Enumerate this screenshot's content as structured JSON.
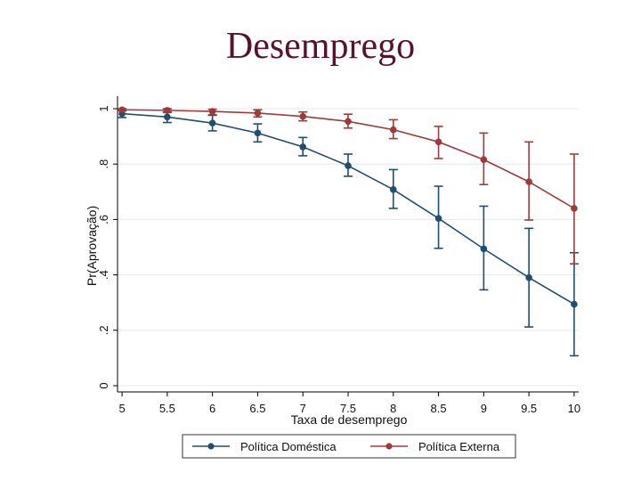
{
  "slide": {
    "title": "Desemprego"
  },
  "chart_data": {
    "type": "line",
    "title": "Desemprego",
    "xlabel": "Taxa de desemprego",
    "ylabel": "Pr(Aprovação)",
    "x": [
      5,
      5.5,
      6,
      6.5,
      7,
      7.5,
      8,
      8.5,
      9,
      9.5,
      10
    ],
    "x_tick_labels": [
      "5",
      "5.5",
      "6",
      "6.5",
      "7",
      "7.5",
      "8",
      "8.5",
      "9",
      "9.5",
      "10"
    ],
    "y_ticks": [
      0,
      0.2,
      0.4,
      0.6,
      0.8,
      1
    ],
    "y_tick_labels": [
      "0",
      ".2",
      ".4",
      ".6",
      ".8",
      "1"
    ],
    "xlim": [
      4.95,
      10.05
    ],
    "ylim": [
      0,
      1
    ],
    "grid": true,
    "legend_position": "bottom",
    "series": [
      {
        "name": "Política Doméstica",
        "color": "#1f4e6e",
        "values": [
          0.982,
          0.97,
          0.948,
          0.912,
          0.862,
          0.794,
          0.708,
          0.604,
          0.494,
          0.39,
          0.294
        ],
        "ci_low": [
          0.968,
          0.95,
          0.92,
          0.88,
          0.83,
          0.756,
          0.64,
          0.496,
          0.346,
          0.212,
          0.108
        ],
        "ci_high": [
          0.994,
          0.988,
          0.976,
          0.945,
          0.896,
          0.836,
          0.78,
          0.72,
          0.648,
          0.568,
          0.48
        ]
      },
      {
        "name": "Política Externa",
        "color": "#a03a3a",
        "values": [
          0.996,
          0.994,
          0.99,
          0.984,
          0.972,
          0.954,
          0.924,
          0.88,
          0.816,
          0.736,
          0.64
        ],
        "ci_low": [
          0.992,
          0.986,
          0.978,
          0.97,
          0.956,
          0.93,
          0.892,
          0.82,
          0.726,
          0.598,
          0.44
        ],
        "ci_high": [
          1.0,
          1.0,
          0.998,
          0.996,
          0.988,
          0.98,
          0.96,
          0.936,
          0.912,
          0.88,
          0.836
        ]
      }
    ]
  }
}
